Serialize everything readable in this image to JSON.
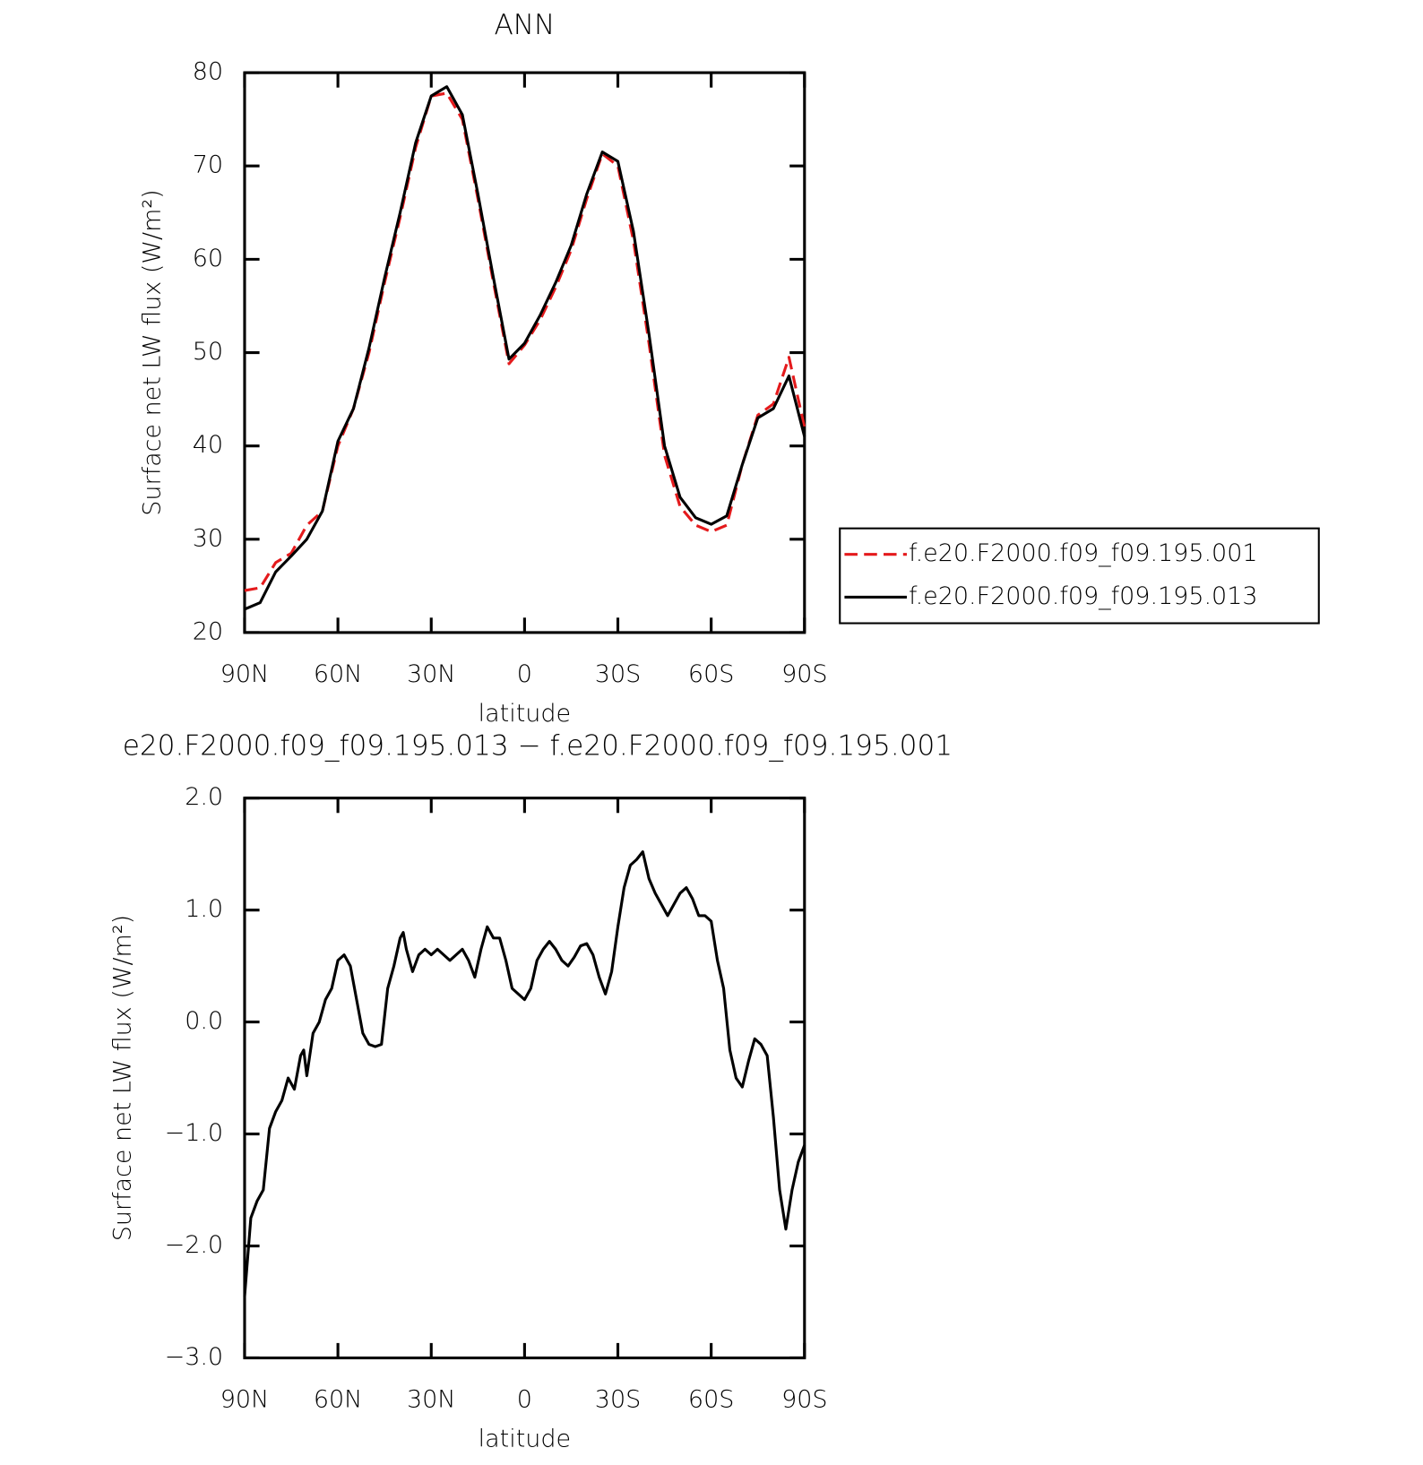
{
  "chart_data": [
    {
      "type": "line",
      "title": "ANN",
      "xlabel": "latitude",
      "ylabel": "Surface net LW flux (W/m²)",
      "x": [
        90,
        85,
        80,
        75,
        70,
        65,
        60,
        55,
        50,
        45,
        40,
        35,
        30,
        25,
        20,
        15,
        10,
        5,
        0,
        -5,
        -10,
        -15,
        -20,
        -25,
        -30,
        -35,
        -40,
        -45,
        -50,
        -55,
        -60,
        -65,
        -70,
        -75,
        -80,
        -85,
        -90
      ],
      "xlim": [
        90,
        -90
      ],
      "xticks": [
        {
          "value": 90,
          "label": "90N"
        },
        {
          "value": 60,
          "label": "60N"
        },
        {
          "value": 30,
          "label": "30N"
        },
        0,
        {
          "value": -30,
          "label": "30S"
        },
        {
          "value": -60,
          "label": "60S"
        },
        {
          "value": -90,
          "label": "90S"
        }
      ],
      "ylim": [
        20,
        80
      ],
      "yticks": [
        20,
        30,
        40,
        50,
        60,
        70,
        80
      ],
      "legend": "right",
      "series": [
        {
          "name": "f.e20.F2000.f09_f09.195.001",
          "color": "#e41a1c",
          "dashed": true,
          "values": [
            24.5,
            24.8,
            27.5,
            28.5,
            31.5,
            33,
            40,
            44,
            50,
            57.5,
            64.5,
            72,
            77.5,
            77.8,
            75,
            66.5,
            57.5,
            48.8,
            50.8,
            53.5,
            57,
            61,
            66.5,
            71.3,
            70,
            62,
            51,
            39,
            33.5,
            31.5,
            30.8,
            31.5,
            38,
            43.3,
            44.5,
            49.5,
            42
          ]
        },
        {
          "name": "f.e20.F2000.f09_f09.195.013",
          "color": "#000000",
          "dashed": false,
          "values": [
            22.5,
            23.2,
            26.5,
            28.2,
            30,
            33,
            40.5,
            44,
            50.5,
            58,
            65,
            72.5,
            77.5,
            78.5,
            75.5,
            67,
            58,
            49.3,
            51,
            54,
            57.5,
            61.5,
            67,
            71.5,
            70.5,
            63,
            52,
            40,
            34.5,
            32.3,
            31.6,
            32.5,
            38,
            43,
            44,
            47.5,
            41
          ]
        }
      ]
    },
    {
      "type": "line",
      "title": "e20.F2000.f09_f09.195.013 − f.e20.F2000.f09_f09.195.001",
      "xlabel": "latitude",
      "ylabel": "Surface net LW flux (W/m²)",
      "x": [
        90,
        88,
        86,
        84,
        82,
        80,
        78,
        76,
        74,
        72,
        71,
        70,
        68,
        66,
        64,
        62,
        60,
        58,
        56,
        54,
        52,
        50,
        48,
        46,
        44,
        42,
        40,
        39,
        38,
        36,
        34,
        32,
        30,
        28,
        26,
        24,
        22,
        20,
        18,
        16,
        14,
        12,
        10,
        8,
        6,
        4,
        2,
        0,
        -2,
        -4,
        -6,
        -8,
        -10,
        -12,
        -14,
        -16,
        -18,
        -20,
        -22,
        -24,
        -26,
        -28,
        -30,
        -32,
        -34,
        -36,
        -38,
        -40,
        -42,
        -44,
        -46,
        -48,
        -50,
        -52,
        -54,
        -56,
        -58,
        -60,
        -62,
        -64,
        -66,
        -68,
        -70,
        -72,
        -74,
        -76,
        -78,
        -80,
        -82,
        -84,
        -86,
        -88,
        -90
      ],
      "xlim": [
        90,
        -90
      ],
      "xticks": [
        {
          "value": 90,
          "label": "90N"
        },
        {
          "value": 60,
          "label": "60N"
        },
        {
          "value": 30,
          "label": "30N"
        },
        0,
        {
          "value": -30,
          "label": "30S"
        },
        {
          "value": -60,
          "label": "60S"
        },
        {
          "value": -90,
          "label": "90S"
        }
      ],
      "ylim": [
        -3,
        2
      ],
      "yticks": [
        {
          "value": -3,
          "label": "−3.0"
        },
        {
          "value": -2,
          "label": "−2.0"
        },
        {
          "value": -1,
          "label": "−1.0"
        },
        {
          "value": 0,
          "label": "0.0"
        },
        {
          "value": 1,
          "label": "1.0"
        },
        {
          "value": 2,
          "label": "2.0"
        }
      ],
      "series": [
        {
          "color": "#000000",
          "dashed": false,
          "values": [
            -2.45,
            -1.75,
            -1.6,
            -1.5,
            -0.95,
            -0.8,
            -0.7,
            -0.5,
            -0.6,
            -0.3,
            -0.25,
            -0.48,
            -0.1,
            0.0,
            0.2,
            0.3,
            0.55,
            0.6,
            0.5,
            0.2,
            -0.1,
            -0.2,
            -0.22,
            -0.2,
            0.3,
            0.5,
            0.75,
            0.8,
            0.65,
            0.45,
            0.6,
            0.65,
            0.6,
            0.65,
            0.6,
            0.55,
            0.6,
            0.65,
            0.55,
            0.4,
            0.65,
            0.85,
            0.75,
            0.75,
            0.55,
            0.3,
            0.25,
            0.2,
            0.3,
            0.55,
            0.65,
            0.72,
            0.65,
            0.55,
            0.5,
            0.58,
            0.68,
            0.7,
            0.6,
            0.4,
            0.25,
            0.45,
            0.85,
            1.2,
            1.4,
            1.45,
            1.52,
            1.28,
            1.15,
            1.05,
            0.95,
            1.05,
            1.15,
            1.2,
            1.1,
            0.95,
            0.95,
            0.9,
            0.55,
            0.3,
            -0.25,
            -0.5,
            -0.58,
            -0.35,
            -0.15,
            -0.2,
            -0.3,
            -0.85,
            -1.5,
            -1.85,
            -1.5,
            -1.25,
            -1.1
          ]
        }
      ]
    }
  ]
}
